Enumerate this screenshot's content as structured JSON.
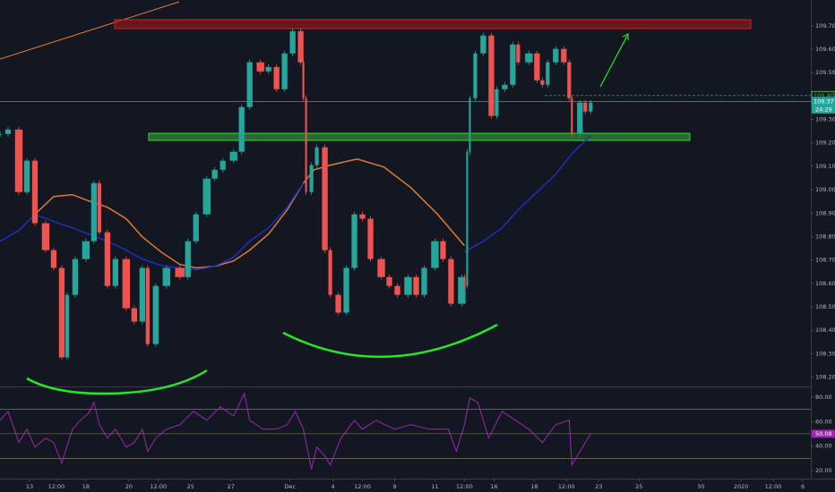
{
  "chart_data": [
    {
      "type": "candlestick",
      "xlim": [
        0,
        302
      ],
      "ylim": [
        108.16,
        109.81
      ],
      "yticks": [
        {
          "value": 109.7,
          "label": "109.700"
        },
        {
          "value": 109.6,
          "label": "109.600"
        },
        {
          "value": 109.5,
          "label": "109.500"
        },
        {
          "value": 109.4,
          "label": "109.400"
        },
        {
          "value": 109.3,
          "label": "109.300"
        },
        {
          "value": 109.2,
          "label": "109.200"
        },
        {
          "value": 109.1,
          "label": "109.100"
        },
        {
          "value": 109.0,
          "label": "109.000"
        },
        {
          "value": 108.9,
          "label": "108.900"
        },
        {
          "value": 108.8,
          "label": "108.800"
        },
        {
          "value": 108.7,
          "label": "108.700"
        },
        {
          "value": 108.6,
          "label": "108.600"
        },
        {
          "value": 108.5,
          "label": "108.500"
        },
        {
          "value": 108.4,
          "label": "108.400"
        },
        {
          "value": 108.3,
          "label": "108.300"
        },
        {
          "value": 108.2,
          "label": "108.200"
        }
      ],
      "up_color": "#26a69a",
      "down_color": "#ef5350",
      "x": [
        0,
        3,
        7,
        10,
        13,
        17,
        20,
        23,
        25,
        28,
        32,
        35,
        37,
        40,
        43,
        47,
        50,
        53,
        55,
        58,
        62,
        67,
        70,
        73,
        77,
        80,
        83,
        87,
        90,
        93,
        97,
        100,
        103,
        106,
        109,
        112,
        113,
        114,
        116,
        118,
        121,
        123,
        126,
        129,
        132,
        135,
        138,
        142,
        145,
        148,
        152,
        155,
        158,
        162,
        165,
        168,
        172,
        173,
        174,
        175,
        177,
        180,
        183,
        185,
        188,
        191,
        193,
        197,
        200,
        202,
        204,
        207,
        210,
        212,
        213,
        216,
        218,
        220
      ],
      "values": [
        109.238,
        109.257,
        108.99,
        109.124,
        108.857,
        108.742,
        108.666,
        108.284,
        108.551,
        108.704,
        108.78,
        109.028,
        108.818,
        108.589,
        108.704,
        108.494,
        108.437,
        108.666,
        108.341,
        108.589,
        108.666,
        108.627,
        108.78,
        108.895,
        109.047,
        109.085,
        109.124,
        109.162,
        109.353,
        109.544,
        109.505,
        109.524,
        109.429,
        109.582,
        109.677,
        109.544,
        109.391,
        108.99,
        109.105,
        109.181,
        108.742,
        108.551,
        108.475,
        108.666,
        108.895,
        108.876,
        108.704,
        108.627,
        108.589,
        108.551,
        108.627,
        108.551,
        108.666,
        108.78,
        108.704,
        108.513,
        108.627,
        108.589,
        109.162,
        109.391,
        109.582,
        109.658,
        109.315,
        109.429,
        109.448,
        109.62,
        109.544,
        109.582,
        109.467,
        109.448,
        109.544,
        109.601,
        109.544,
        109.391,
        109.238,
        109.372,
        109.334,
        109.372
      ],
      "lines": [
        {
          "color": "#e07b2a",
          "x": [
            13,
            20,
            27,
            33,
            40,
            47,
            53,
            60,
            67,
            73,
            80,
            87,
            93,
            100,
            107,
            113,
            117,
            123,
            133,
            143,
            153,
            163,
            173
          ],
          "values": [
            108.895,
            108.971,
            108.979,
            108.952,
            108.925,
            108.876,
            108.799,
            108.734,
            108.681,
            108.666,
            108.673,
            108.696,
            108.742,
            108.811,
            108.914,
            109.028,
            109.085,
            109.105,
            109.131,
            109.097,
            109.009,
            108.895,
            108.761
          ]
        },
        {
          "color": "#1e2fbf",
          "x": [
            0,
            7,
            13,
            20,
            27,
            33,
            40,
            47,
            53,
            60,
            67,
            73,
            80,
            87,
            93,
            100,
            107,
            113,
            140,
            173,
            180,
            187,
            193,
            200,
            207,
            213,
            220
          ],
          "values": [
            108.78,
            108.826,
            108.895,
            108.864,
            108.837,
            108.811,
            108.78,
            108.742,
            108.704,
            108.677,
            108.666,
            108.658,
            108.673,
            108.711,
            108.78,
            108.837,
            108.925,
            109.028,
            null,
            108.734,
            108.78,
            108.837,
            108.914,
            108.99,
            109.066,
            109.154,
            109.231
          ]
        }
      ],
      "price_tags": [
        {
          "value": 109.402,
          "label": "109.402",
          "color": "#4caf50"
        },
        {
          "value": 109.377,
          "label": "109.377",
          "color": "#26a69a"
        }
      ],
      "countdown": "24:29"
    },
    {
      "type": "line",
      "xlim": [
        0,
        302
      ],
      "ylim": [
        13.5,
        88.7
      ],
      "yticks": [
        {
          "value": 80,
          "label": "80.00"
        },
        {
          "value": 60,
          "label": "60.00"
        },
        {
          "value": 40,
          "label": "40.00"
        },
        {
          "value": 20,
          "label": "20.00"
        }
      ],
      "levels": [
        70,
        30
      ],
      "color": "#9c27b0",
      "x": [
        0,
        3,
        7,
        10,
        13,
        17,
        20,
        23,
        27,
        30,
        33,
        35,
        37,
        40,
        43,
        47,
        50,
        53,
        55,
        58,
        62,
        67,
        72,
        77,
        82,
        87,
        91,
        93,
        98,
        103,
        107,
        110,
        113,
        116,
        118,
        121,
        123,
        127,
        132,
        135,
        140,
        147,
        153,
        160,
        167,
        170,
        173,
        175,
        178,
        182,
        187,
        192,
        197,
        202,
        207,
        212,
        213,
        217,
        220
      ],
      "values": [
        61.1,
        68.4,
        42.9,
        53.8,
        39.3,
        46.5,
        42.9,
        26.2,
        53.8,
        61.1,
        66.9,
        75.6,
        57.5,
        46.5,
        53.8,
        39.3,
        42.9,
        53.8,
        35.6,
        46.5,
        53.8,
        57.5,
        68.4,
        61.1,
        72.0,
        64.7,
        82.9,
        61.1,
        53.8,
        53.8,
        57.5,
        68.4,
        53.8,
        21.1,
        39.3,
        32.0,
        24.7,
        46.5,
        61.1,
        53.8,
        61.1,
        53.8,
        57.5,
        53.8,
        53.8,
        35.6,
        57.5,
        79.3,
        75.6,
        46.5,
        68.4,
        61.1,
        53.8,
        42.9,
        57.5,
        61.1,
        24.7,
        39.3,
        50.2
      ],
      "price_tag": {
        "value": 50.08,
        "label": "50.08"
      },
      "xticks": [
        {
          "value": 11,
          "label": "13"
        },
        {
          "value": 21,
          "label": "12:00"
        },
        {
          "value": 32,
          "label": "18"
        },
        {
          "value": 48,
          "label": "20"
        },
        {
          "value": 59,
          "label": "12:00"
        },
        {
          "value": 71,
          "label": "25"
        },
        {
          "value": 86,
          "label": "27"
        },
        {
          "value": 108,
          "label": "Dec"
        },
        {
          "value": 124,
          "label": "4"
        },
        {
          "value": 135,
          "label": "12:00"
        },
        {
          "value": 147,
          "label": "9"
        },
        {
          "value": 162,
          "label": "11"
        },
        {
          "value": 173,
          "label": "12:00"
        },
        {
          "value": 184,
          "label": "16"
        },
        {
          "value": 199,
          "label": "18"
        },
        {
          "value": 211,
          "label": "12:00"
        },
        {
          "value": 223,
          "label": "23"
        },
        {
          "value": 238,
          "label": "25"
        },
        {
          "value": 261,
          "label": "30"
        },
        {
          "value": 276,
          "label": "2020"
        },
        {
          "value": 288,
          "label": "12:00"
        },
        {
          "value": 299,
          "label": "6"
        }
      ]
    }
  ]
}
